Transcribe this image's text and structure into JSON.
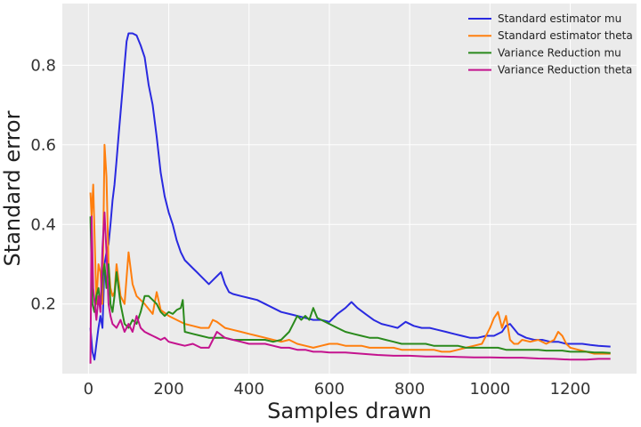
{
  "chart_data": {
    "type": "line",
    "title": "",
    "xlabel": "Samples drawn",
    "ylabel": "Standard error",
    "xlim": [
      -65,
      1365
    ],
    "ylim": [
      0.025,
      0.955
    ],
    "xticks": [
      0,
      200,
      400,
      600,
      800,
      1000,
      1200
    ],
    "yticks": [
      0.2,
      0.4,
      0.6,
      0.8
    ],
    "grid": true,
    "background": "#ebebeb",
    "legend_position": "top-right",
    "series": [
      {
        "name": "Standard estimator mu",
        "color": "#2a2ae0",
        "x": [
          5,
          10,
          15,
          20,
          25,
          30,
          35,
          40,
          45,
          50,
          55,
          60,
          65,
          70,
          75,
          80,
          85,
          90,
          95,
          100,
          110,
          120,
          130,
          140,
          150,
          160,
          170,
          180,
          190,
          200,
          210,
          220,
          230,
          240,
          250,
          260,
          270,
          280,
          290,
          300,
          310,
          320,
          330,
          340,
          350,
          360,
          380,
          400,
          420,
          440,
          460,
          480,
          500,
          520,
          540,
          560,
          580,
          600,
          620,
          640,
          655,
          670,
          690,
          710,
          730,
          750,
          770,
          790,
          810,
          830,
          850,
          870,
          890,
          910,
          930,
          950,
          970,
          990,
          1010,
          1030,
          1040,
          1050,
          1070,
          1090,
          1110,
          1130,
          1150,
          1170,
          1190,
          1210,
          1230,
          1250,
          1270,
          1300
        ],
        "y": [
          0.14,
          0.08,
          0.06,
          0.1,
          0.14,
          0.17,
          0.14,
          0.3,
          0.33,
          0.35,
          0.4,
          0.46,
          0.5,
          0.56,
          0.62,
          0.68,
          0.74,
          0.8,
          0.86,
          0.88,
          0.88,
          0.875,
          0.85,
          0.82,
          0.75,
          0.7,
          0.62,
          0.53,
          0.47,
          0.43,
          0.4,
          0.36,
          0.33,
          0.31,
          0.3,
          0.29,
          0.28,
          0.27,
          0.26,
          0.25,
          0.26,
          0.27,
          0.28,
          0.25,
          0.23,
          0.225,
          0.22,
          0.215,
          0.21,
          0.2,
          0.19,
          0.18,
          0.175,
          0.17,
          0.165,
          0.16,
          0.16,
          0.155,
          0.175,
          0.19,
          0.205,
          0.19,
          0.175,
          0.16,
          0.15,
          0.145,
          0.14,
          0.155,
          0.145,
          0.14,
          0.14,
          0.135,
          0.13,
          0.125,
          0.12,
          0.115,
          0.115,
          0.12,
          0.12,
          0.13,
          0.145,
          0.15,
          0.125,
          0.115,
          0.11,
          0.11,
          0.105,
          0.105,
          0.1,
          0.1,
          0.1,
          0.097,
          0.095,
          0.093
        ]
      },
      {
        "name": "Standard estimator theta",
        "color": "#ff7f0e",
        "x": [
          5,
          8,
          12,
          16,
          20,
          25,
          30,
          35,
          40,
          45,
          50,
          55,
          60,
          65,
          70,
          80,
          90,
          100,
          110,
          120,
          140,
          160,
          170,
          180,
          200,
          220,
          240,
          260,
          280,
          300,
          310,
          320,
          340,
          360,
          380,
          400,
          420,
          440,
          460,
          480,
          500,
          520,
          540,
          560,
          580,
          600,
          620,
          640,
          660,
          680,
          700,
          720,
          740,
          760,
          780,
          800,
          820,
          840,
          860,
          880,
          900,
          920,
          940,
          960,
          980,
          990,
          1000,
          1010,
          1020,
          1030,
          1040,
          1050,
          1060,
          1070,
          1080,
          1100,
          1120,
          1140,
          1160,
          1170,
          1180,
          1190,
          1200,
          1220,
          1240,
          1260,
          1280,
          1300
        ],
        "y": [
          0.48,
          0.42,
          0.5,
          0.35,
          0.2,
          0.3,
          0.28,
          0.2,
          0.6,
          0.52,
          0.3,
          0.24,
          0.22,
          0.23,
          0.3,
          0.22,
          0.2,
          0.33,
          0.25,
          0.22,
          0.2,
          0.175,
          0.23,
          0.185,
          0.17,
          0.16,
          0.15,
          0.145,
          0.14,
          0.14,
          0.16,
          0.155,
          0.14,
          0.135,
          0.13,
          0.125,
          0.12,
          0.115,
          0.11,
          0.105,
          0.11,
          0.1,
          0.095,
          0.09,
          0.095,
          0.1,
          0.1,
          0.095,
          0.095,
          0.095,
          0.09,
          0.09,
          0.09,
          0.09,
          0.085,
          0.085,
          0.085,
          0.085,
          0.085,
          0.08,
          0.08,
          0.085,
          0.09,
          0.095,
          0.1,
          0.12,
          0.14,
          0.165,
          0.18,
          0.14,
          0.17,
          0.11,
          0.1,
          0.1,
          0.11,
          0.105,
          0.11,
          0.1,
          0.11,
          0.13,
          0.12,
          0.1,
          0.09,
          0.085,
          0.08,
          0.075,
          0.075,
          0.075
        ]
      },
      {
        "name": "Variance Reduction mu",
        "color": "#2a8a1c",
        "x": [
          5,
          10,
          15,
          20,
          25,
          30,
          35,
          40,
          45,
          50,
          55,
          60,
          65,
          70,
          80,
          90,
          100,
          110,
          120,
          130,
          140,
          150,
          160,
          170,
          180,
          190,
          200,
          210,
          220,
          230,
          235,
          240,
          260,
          280,
          300,
          320,
          340,
          360,
          380,
          400,
          420,
          440,
          460,
          480,
          490,
          500,
          510,
          520,
          530,
          540,
          550,
          560,
          570,
          580,
          600,
          620,
          640,
          660,
          680,
          700,
          720,
          740,
          760,
          780,
          800,
          820,
          840,
          860,
          880,
          900,
          920,
          940,
          960,
          980,
          1000,
          1020,
          1040,
          1060,
          1080,
          1100,
          1120,
          1140,
          1160,
          1180,
          1200,
          1220,
          1240,
          1260,
          1280,
          1300
        ],
        "y": [
          0.42,
          0.2,
          0.18,
          0.22,
          0.24,
          0.19,
          0.27,
          0.3,
          0.24,
          0.3,
          0.2,
          0.18,
          0.22,
          0.28,
          0.2,
          0.15,
          0.14,
          0.16,
          0.15,
          0.18,
          0.22,
          0.22,
          0.21,
          0.2,
          0.18,
          0.17,
          0.18,
          0.175,
          0.185,
          0.19,
          0.21,
          0.13,
          0.125,
          0.12,
          0.115,
          0.115,
          0.115,
          0.11,
          0.11,
          0.11,
          0.11,
          0.11,
          0.105,
          0.11,
          0.12,
          0.13,
          0.15,
          0.17,
          0.16,
          0.17,
          0.16,
          0.19,
          0.165,
          0.16,
          0.15,
          0.14,
          0.13,
          0.125,
          0.12,
          0.115,
          0.115,
          0.11,
          0.105,
          0.1,
          0.1,
          0.1,
          0.1,
          0.095,
          0.095,
          0.095,
          0.095,
          0.09,
          0.09,
          0.09,
          0.09,
          0.09,
          0.085,
          0.085,
          0.085,
          0.085,
          0.085,
          0.083,
          0.083,
          0.083,
          0.08,
          0.08,
          0.08,
          0.078,
          0.078,
          0.077
        ]
      },
      {
        "name": "Variance Reduction theta",
        "color": "#c4138e",
        "x": [
          5,
          8,
          12,
          16,
          20,
          25,
          30,
          35,
          40,
          45,
          50,
          55,
          60,
          70,
          80,
          90,
          100,
          110,
          120,
          130,
          140,
          150,
          160,
          170,
          180,
          190,
          200,
          220,
          240,
          260,
          280,
          300,
          310,
          320,
          340,
          360,
          380,
          400,
          420,
          440,
          460,
          480,
          500,
          520,
          540,
          560,
          580,
          600,
          640,
          680,
          720,
          760,
          800,
          840,
          880,
          920,
          960,
          1000,
          1040,
          1080,
          1120,
          1160,
          1200,
          1240,
          1270,
          1300
        ],
        "y": [
          0.05,
          0.42,
          0.24,
          0.2,
          0.16,
          0.22,
          0.18,
          0.34,
          0.43,
          0.33,
          0.2,
          0.17,
          0.15,
          0.14,
          0.16,
          0.13,
          0.15,
          0.13,
          0.17,
          0.14,
          0.13,
          0.125,
          0.12,
          0.115,
          0.11,
          0.115,
          0.105,
          0.1,
          0.095,
          0.1,
          0.09,
          0.09,
          0.11,
          0.13,
          0.115,
          0.11,
          0.105,
          0.1,
          0.1,
          0.1,
          0.095,
          0.09,
          0.09,
          0.085,
          0.085,
          0.08,
          0.08,
          0.078,
          0.078,
          0.075,
          0.072,
          0.07,
          0.07,
          0.068,
          0.068,
          0.067,
          0.066,
          0.066,
          0.065,
          0.065,
          0.063,
          0.062,
          0.06,
          0.06,
          0.062,
          0.062
        ]
      }
    ]
  }
}
